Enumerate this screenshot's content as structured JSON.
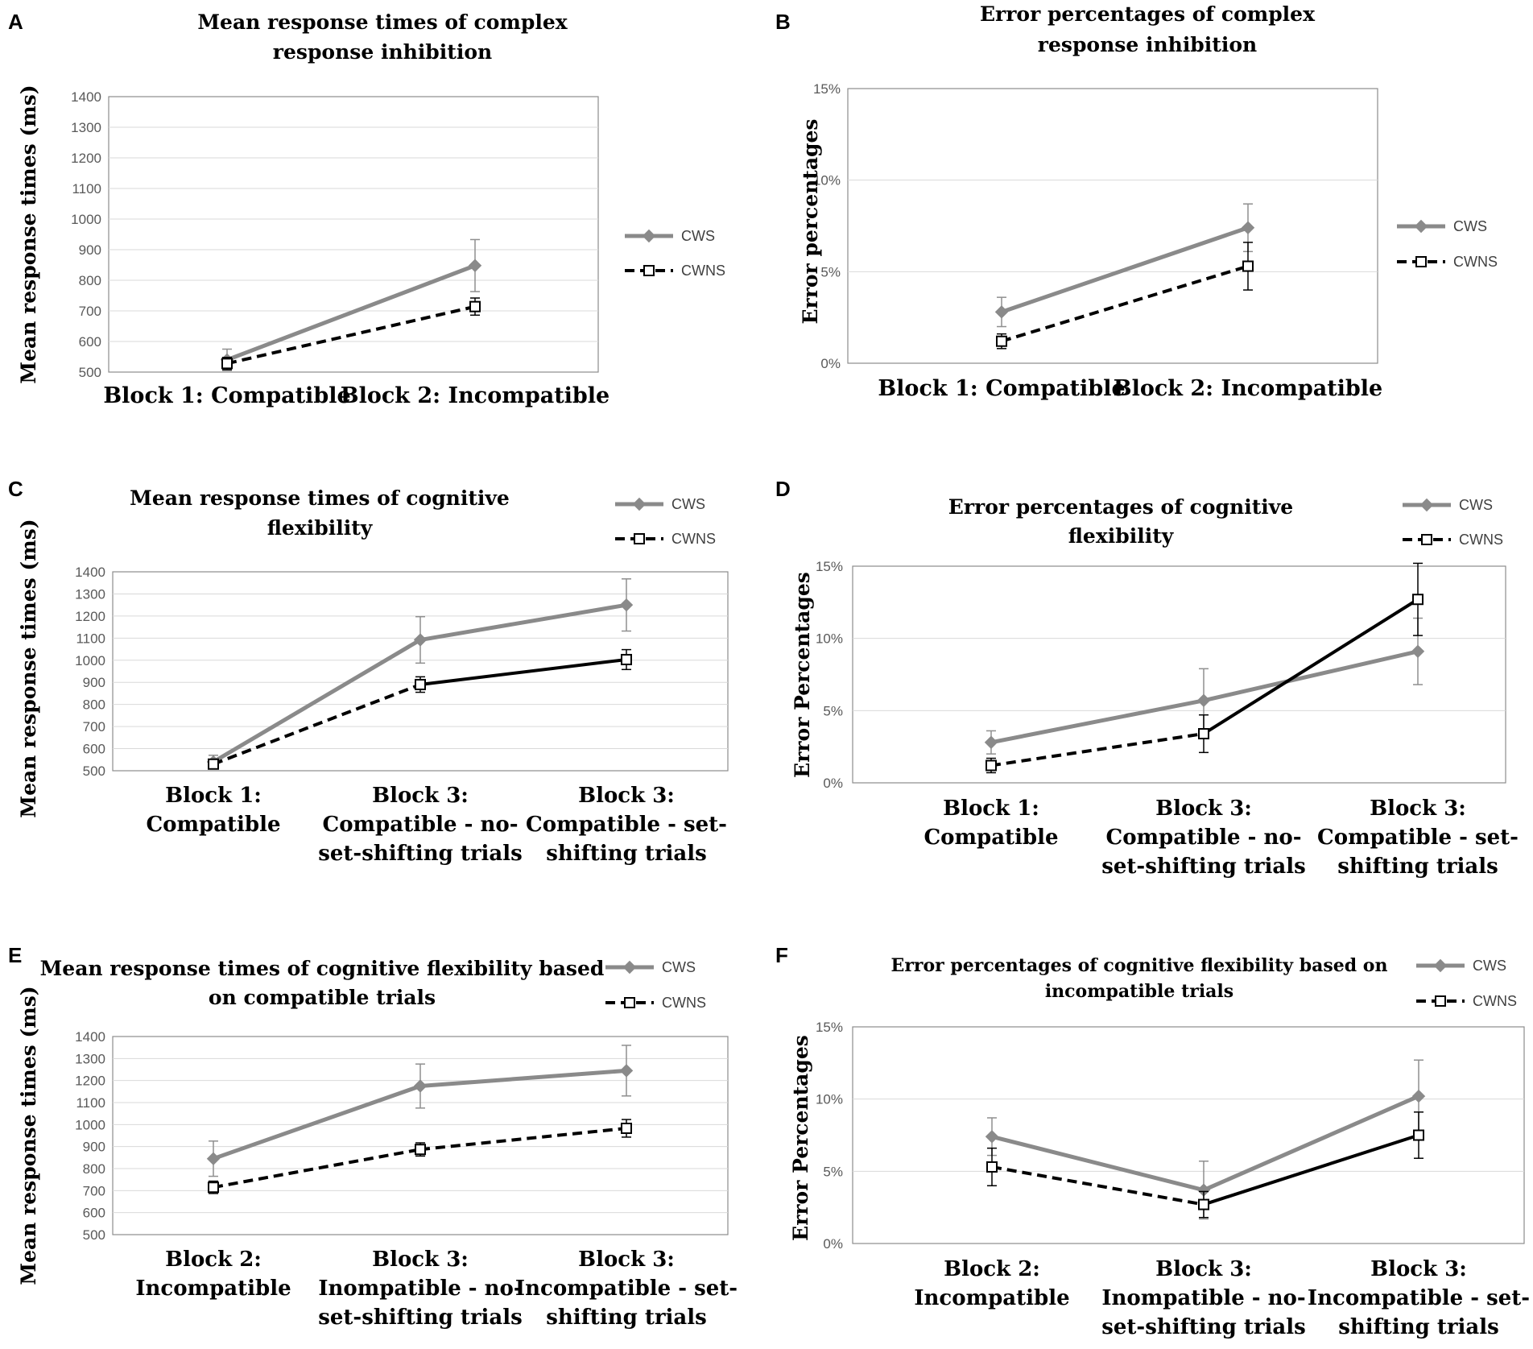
{
  "legend": {
    "cws": "CWS",
    "cwns": "CWNS"
  },
  "colors": {
    "cws": "#8a8a8a",
    "cwns": "#000000",
    "grid": "#d9d9d9",
    "frame": "#8c8c8c",
    "tick": "#595959"
  },
  "chart_data": [
    {
      "panel": "A",
      "type": "line",
      "title": [
        "Mean response times of complex",
        "response inhibition"
      ],
      "ylabel": "Mean response times (ms)",
      "xlabel": "",
      "ylim": [
        500,
        1400
      ],
      "yticks": [
        "500",
        "600",
        "700",
        "800",
        "900",
        "1000",
        "1100",
        "1200",
        "1300",
        "1400"
      ],
      "categories": [
        [
          "Block 1:  Compatible"
        ],
        [
          "Block 2:  Incompatible"
        ]
      ],
      "grid": true,
      "legend_position": "right",
      "series": [
        {
          "name": "CWS",
          "values": [
            540,
            848
          ],
          "errors": [
            35,
            85
          ],
          "dash": [
            false
          ]
        },
        {
          "name": "CWNS",
          "values": [
            528,
            714
          ],
          "errors": [
            20,
            28
          ],
          "dash": [
            true
          ]
        }
      ]
    },
    {
      "panel": "B",
      "type": "line",
      "title": [
        "Error percentages of complex",
        "response inhibition"
      ],
      "ylabel": "Error percentages",
      "xlabel": "",
      "ylim": [
        0,
        15
      ],
      "yticks": [
        "0%",
        "5%",
        "10%",
        "15%"
      ],
      "categories": [
        [
          "Block 1:  Compatible"
        ],
        [
          "Block 2:  Incompatible"
        ]
      ],
      "grid": true,
      "legend_position": "right",
      "series": [
        {
          "name": "CWS",
          "values": [
            2.8,
            7.4
          ],
          "errors": [
            0.8,
            1.3
          ],
          "dash": [
            false
          ]
        },
        {
          "name": "CWNS",
          "values": [
            1.2,
            5.3
          ],
          "errors": [
            0.4,
            1.3
          ],
          "dash": [
            true
          ]
        }
      ]
    },
    {
      "panel": "C",
      "type": "line",
      "title": [
        "Mean response times of cognitive",
        "flexibility"
      ],
      "ylabel": "Mean response times (ms)",
      "xlabel": "",
      "ylim": [
        500,
        1400
      ],
      "yticks": [
        "500",
        "600",
        "700",
        "800",
        "900",
        "1000",
        "1100",
        "1200",
        "1300",
        "1400"
      ],
      "categories": [
        [
          "Block 1:",
          "Compatible"
        ],
        [
          "Block 3:",
          "Compatible - no-",
          "set-shifting trials"
        ],
        [
          "Block 3:",
          "Compatible - set-",
          "shifting trials"
        ]
      ],
      "grid": true,
      "legend_position": "top-right",
      "series": [
        {
          "name": "CWS",
          "values": [
            540,
            1092,
            1250
          ],
          "errors": [
            30,
            105,
            118
          ],
          "dash": [
            false,
            false
          ]
        },
        {
          "name": "CWNS",
          "values": [
            530,
            890,
            1003
          ],
          "errors": [
            20,
            35,
            45
          ],
          "dash": [
            true,
            false
          ]
        }
      ]
    },
    {
      "panel": "D",
      "type": "line",
      "title": [
        "Error percentages of cognitive",
        "flexibility"
      ],
      "ylabel": "Error Percentages",
      "xlabel": "",
      "ylim": [
        0,
        15
      ],
      "yticks": [
        "0%",
        "5%",
        "10%",
        "15%"
      ],
      "categories": [
        [
          "Block 1:",
          "Compatible"
        ],
        [
          "Block 3:",
          "Compatible - no-",
          "set-shifting trials"
        ],
        [
          "Block 3:",
          "Compatible - set-",
          "shifting trials"
        ]
      ],
      "grid": true,
      "legend_position": "top-right",
      "series": [
        {
          "name": "CWS",
          "values": [
            2.8,
            5.7,
            9.1
          ],
          "errors": [
            0.8,
            2.2,
            2.3
          ],
          "dash": [
            false,
            false
          ]
        },
        {
          "name": "CWNS",
          "values": [
            1.2,
            3.4,
            12.7
          ],
          "errors": [
            0.5,
            1.3,
            2.5
          ],
          "dash": [
            true,
            false
          ]
        }
      ]
    },
    {
      "panel": "E",
      "type": "line",
      "title": [
        "Mean response times of cognitive flexibility based",
        "on compatible trials"
      ],
      "ylabel": "Mean response times (ms)",
      "xlabel": "",
      "ylim": [
        500,
        1400
      ],
      "yticks": [
        "500",
        "600",
        "700",
        "800",
        "900",
        "1000",
        "1100",
        "1200",
        "1300",
        "1400"
      ],
      "categories": [
        [
          "Block 2:",
          "Incompatible"
        ],
        [
          "Block 3:",
          "Inompatible - no-",
          "set-shifting trials"
        ],
        [
          "Block 3:",
          "Incompatible - set-",
          "shifting trials"
        ]
      ],
      "grid": true,
      "legend_position": "top-right",
      "series": [
        {
          "name": "CWS",
          "values": [
            845,
            1175,
            1245
          ],
          "errors": [
            80,
            100,
            115
          ],
          "dash": [
            false,
            false
          ]
        },
        {
          "name": "CWNS",
          "values": [
            715,
            887,
            983
          ],
          "errors": [
            28,
            30,
            40
          ],
          "dash": [
            true,
            true
          ]
        }
      ]
    },
    {
      "panel": "F",
      "type": "line",
      "title": [
        "Error percentages of cognitive flexibility based on",
        "incompatible trials"
      ],
      "ylabel": "Error Percentages",
      "xlabel": "",
      "ylim": [
        0,
        15
      ],
      "yticks": [
        "0%",
        "5%",
        "10%",
        "15%"
      ],
      "categories": [
        [
          "Block 2:",
          "Incompatible"
        ],
        [
          "Block 3:",
          "Inompatible - no-",
          "set-shifting trials"
        ],
        [
          "Block 3:",
          "Incompatible - set-",
          "shifting trials"
        ]
      ],
      "grid": true,
      "legend_position": "top-right",
      "series": [
        {
          "name": "CWS",
          "values": [
            7.4,
            3.7,
            10.2
          ],
          "errors": [
            1.3,
            2.0,
            2.5
          ],
          "dash": [
            false,
            false
          ]
        },
        {
          "name": "CWNS",
          "values": [
            5.3,
            2.7,
            7.5
          ],
          "errors": [
            1.3,
            0.9,
            1.6
          ],
          "dash": [
            true,
            false
          ]
        }
      ]
    }
  ]
}
